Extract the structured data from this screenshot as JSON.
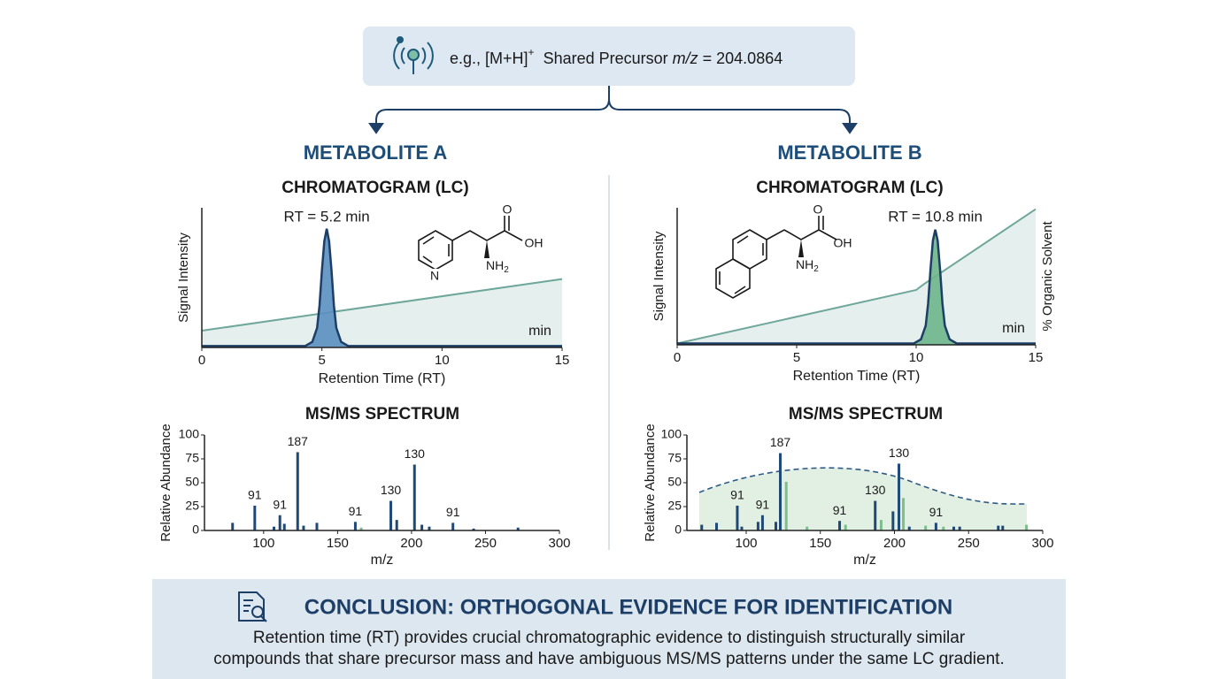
{
  "header": {
    "prefix": "e.g., [M+H]",
    "superscript": "+",
    "label": "Shared Precursor",
    "mz": "m/z",
    "value": "= 204.0864"
  },
  "panels": [
    {
      "title": "METABOLITE A",
      "chromatogram_title": "CHROMATOGRAM (LC)",
      "msms_title": "MS/MS SPECTRUM",
      "structure": {
        "o": "O",
        "oh": "OH",
        "n": "N",
        "nh": "NH",
        "sub": "2"
      }
    },
    {
      "title": "METABOLITE B",
      "chromatogram_title": "CHROMATOGRAM (LC)",
      "msms_title": "MS/MS SPECTRUM",
      "structure": {
        "o": "O",
        "oh": "OH",
        "nh": "NH",
        "sub": "2"
      }
    }
  ],
  "chart_data": [
    {
      "type": "line",
      "x_label": "Retention Time (RT)",
      "y_label": "Signal Intensity",
      "annotation": "RT = 5.2 min",
      "unit_label": "min",
      "xlim": [
        0,
        15
      ],
      "xticks": [
        0,
        5,
        10,
        15
      ],
      "ylim": [
        0,
        100
      ],
      "series": [
        {
          "color": "#6fa79a",
          "x": [
            0,
            15
          ],
          "values": [
            12,
            49
          ]
        },
        {
          "color": "#1d3e66",
          "fill": "#5a8fc0",
          "x": [
            0,
            4.3,
            4.6,
            4.8,
            4.9,
            5.0,
            5.1,
            5.2,
            5.3,
            5.4,
            5.5,
            5.6,
            5.8,
            6.1,
            15
          ],
          "values": [
            1,
            1,
            4,
            14,
            30,
            55,
            76,
            85,
            76,
            55,
            30,
            14,
            4,
            1,
            1
          ]
        }
      ]
    },
    {
      "type": "bar",
      "x_label": "m/z",
      "y_label": "Relative Abundance",
      "xlim": [
        60,
        300
      ],
      "xticks": [
        100,
        150,
        200,
        250,
        300
      ],
      "ylim": [
        0,
        100
      ],
      "yticks": [
        0,
        25,
        50,
        75,
        100
      ],
      "x": [
        79,
        94,
        107,
        111,
        114,
        123,
        127,
        136,
        162,
        166,
        186,
        190,
        202,
        207,
        212,
        228,
        242,
        272
      ],
      "values": [
        8,
        26,
        4,
        16,
        7,
        82,
        5,
        8,
        9,
        3,
        31,
        11,
        69,
        6,
        4,
        8,
        2,
        3
      ],
      "mz_labels": [
        null,
        "91",
        null,
        "91",
        null,
        "187",
        null,
        null,
        "91",
        null,
        "130",
        null,
        "130",
        null,
        null,
        "91",
        null,
        null
      ],
      "colors": [
        "#1f4a78",
        "#1f4a78",
        "#1f4a78",
        "#1f4a78",
        "#1f4a78",
        "#1f4a78",
        "#1f4a78",
        "#1f4a78",
        "#1f4a78",
        "#7cbf8c",
        "#1f4a78",
        "#1f4a78",
        "#1f4a78",
        "#1f4a78",
        "#1f4a78",
        "#1f4a78",
        "#1f4a78",
        "#1f4a78"
      ]
    },
    {
      "type": "line",
      "x_label": "Retention Time (RT)",
      "y_label": "Signal Intensity",
      "y2_label": "% Organic Solvent",
      "annotation": "RT = 10.8 min",
      "unit_label": "min",
      "xlim": [
        0,
        15
      ],
      "xticks": [
        0,
        5,
        10,
        15
      ],
      "ylim": [
        0,
        100
      ],
      "series": [
        {
          "color": "#6fa79a",
          "x": [
            0,
            10,
            10.3,
            15
          ],
          "values": [
            1,
            40,
            44,
            99
          ]
        },
        {
          "color": "#1d3e66",
          "fill": "#6db58a",
          "x": [
            0,
            9.9,
            10.2,
            10.4,
            10.5,
            10.6,
            10.7,
            10.8,
            10.9,
            11.0,
            11.1,
            11.2,
            11.4,
            11.7,
            15
          ],
          "values": [
            1,
            1,
            4,
            14,
            30,
            55,
            76,
            84,
            76,
            55,
            30,
            14,
            4,
            1,
            1
          ]
        }
      ]
    },
    {
      "type": "bar",
      "x_label": "m/z",
      "y_label": "Relative Abundance",
      "xlim": [
        60,
        300
      ],
      "xticks": [
        100,
        150,
        200,
        250,
        300
      ],
      "ylim": [
        0,
        100
      ],
      "yticks": [
        0,
        25,
        50,
        75,
        100
      ],
      "x": [
        70,
        80,
        94,
        97,
        108,
        111,
        120,
        123,
        127,
        141,
        163,
        167,
        187,
        191,
        199,
        203,
        206,
        210,
        221,
        228,
        233,
        240,
        244,
        270,
        273,
        289
      ],
      "values": [
        6,
        8,
        26,
        4,
        9,
        16,
        9,
        81,
        51,
        4,
        10,
        6,
        31,
        11,
        20,
        70,
        34,
        4,
        5,
        8,
        4,
        4,
        4,
        5,
        5,
        6
      ],
      "mz_labels": [
        null,
        null,
        "91",
        null,
        null,
        "91",
        null,
        "187",
        null,
        null,
        "91",
        null,
        "130",
        null,
        null,
        "130",
        null,
        null,
        null,
        "91",
        null,
        null,
        null,
        null,
        null,
        null
      ],
      "colors": [
        "#1f4a78",
        "#1f4a78",
        "#1f4a78",
        "#1f4a78",
        "#1f4a78",
        "#1f4a78",
        "#1f4a78",
        "#1f4a78",
        "#7cbf8c",
        "#7cbf8c",
        "#1f4a78",
        "#7cbf8c",
        "#1f4a78",
        "#7cbf8c",
        "#1f4a78",
        "#1f4a78",
        "#7cbf8c",
        "#1f4a78",
        "#7cbf8c",
        "#1f4a78",
        "#7cbf8c",
        "#1f4a78",
        "#1f4a78",
        "#1f4a78",
        "#1f4a78",
        "#7cbf8c"
      ]
    }
  ],
  "conclusion": {
    "title": "CONCLUSION: ORTHOGONAL EVIDENCE FOR IDENTIFICATION",
    "lines": [
      "Retention time (RT) provides crucial chromatographic evidence to distinguish structurally similar",
      "compounds that share precursor mass and have ambiguous MS/MS patterns under the same LC gradient."
    ]
  }
}
